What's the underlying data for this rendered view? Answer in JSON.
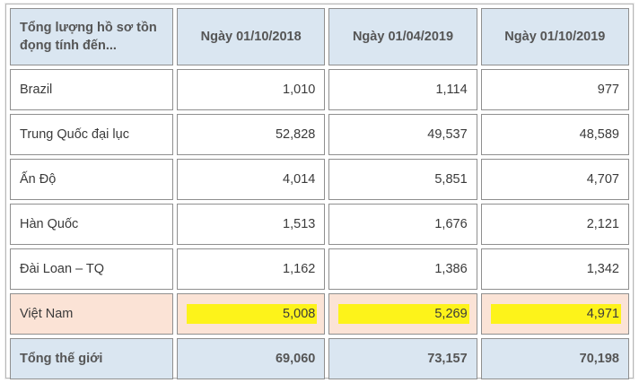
{
  "table": {
    "headers": [
      "Tổng lượng hồ sơ tồn đọng tính đến...",
      "Ngày 01/10/2018",
      "Ngày 01/04/2019",
      "Ngày 01/10/2019"
    ],
    "rows": [
      {
        "name": "Brazil",
        "values": [
          "1,010",
          "1,114",
          "977"
        ]
      },
      {
        "name": "Trung Quốc đại lục",
        "values": [
          "52,828",
          "49,537",
          "48,589"
        ]
      },
      {
        "name": "Ấn Độ",
        "values": [
          "4,014",
          "5,851",
          "4,707"
        ]
      },
      {
        "name": "Hàn Quốc",
        "values": [
          "1,513",
          "1,676",
          "2,121"
        ]
      },
      {
        "name": "Đài Loan – TQ",
        "values": [
          "1,162",
          "1,386",
          "1,342"
        ]
      },
      {
        "name": "Việt Nam",
        "values": [
          "5,008",
          "5,269",
          "4,971"
        ]
      }
    ],
    "total": {
      "name": "Tổng thế giới",
      "values": [
        "69,060",
        "73,157",
        "70,198"
      ]
    }
  },
  "colors": {
    "header_bg": "#dae6f1",
    "highlight_row_bg": "#fbe3d6",
    "highlight_marker": "#fdf31a"
  }
}
